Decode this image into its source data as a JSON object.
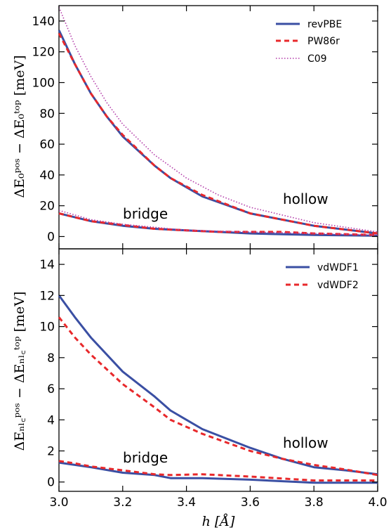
{
  "chart_data": [
    {
      "type": "line",
      "ylabel": "ΔE₀ᵖᵒˢ − ΔE₀ᵗᵒᵖ [meV]",
      "xlim": [
        3.0,
        4.0
      ],
      "ylim": [
        -8,
        150
      ],
      "yticks": [
        "0",
        "20",
        "40",
        "60",
        "80",
        "100",
        "120",
        "140"
      ],
      "legend_position": "top-right",
      "annotations": [
        "hollow",
        "bridge"
      ],
      "series": [
        {
          "name": "revPBE",
          "color": "#3a4fa3",
          "style": "solid",
          "site": "hollow",
          "x": [
            3.0,
            3.05,
            3.1,
            3.15,
            3.2,
            3.3,
            3.35,
            3.45,
            3.6,
            3.8,
            4.0
          ],
          "y": [
            134,
            112,
            93,
            78,
            65,
            46,
            38,
            26,
            15,
            7,
            2
          ]
        },
        {
          "name": "PW86r",
          "color": "#e8282b",
          "style": "dashed",
          "site": "hollow",
          "x": [
            3.0,
            3.05,
            3.1,
            3.15,
            3.2,
            3.3,
            3.35,
            3.45,
            3.6,
            3.8,
            4.0
          ],
          "y": [
            132,
            112,
            93,
            78,
            66,
            46,
            38,
            27,
            15,
            7,
            2
          ]
        },
        {
          "name": "C09",
          "color": "#b23aa8",
          "style": "dotted",
          "site": "hollow",
          "x": [
            3.0,
            3.05,
            3.1,
            3.15,
            3.2,
            3.3,
            3.4,
            3.5,
            3.6,
            3.8,
            4.0
          ],
          "y": [
            149,
            124,
            104,
            87,
            73,
            53,
            38,
            27,
            19,
            9,
            3
          ]
        },
        {
          "name": "revPBE",
          "color": "#3a4fa3",
          "style": "solid",
          "site": "bridge",
          "x": [
            3.0,
            3.1,
            3.2,
            3.3,
            3.4,
            3.5,
            3.6,
            3.8,
            4.0
          ],
          "y": [
            15,
            10,
            7,
            5,
            4,
            3,
            2,
            1,
            0.5
          ]
        },
        {
          "name": "PW86r",
          "color": "#e8282b",
          "style": "dashed",
          "site": "bridge",
          "x": [
            3.0,
            3.1,
            3.2,
            3.3,
            3.4,
            3.5,
            3.6,
            3.7,
            3.8,
            4.0
          ],
          "y": [
            15,
            10,
            7.5,
            5,
            4,
            3,
            3,
            3,
            2,
            1
          ]
        },
        {
          "name": "C09",
          "color": "#b23aa8",
          "style": "dotted",
          "site": "bridge",
          "x": [
            3.0,
            3.1,
            3.2,
            3.3,
            3.4,
            3.5,
            3.6,
            3.8,
            4.0
          ],
          "y": [
            17,
            11,
            8,
            6,
            4,
            3.5,
            3,
            2,
            1
          ]
        }
      ]
    },
    {
      "type": "line",
      "ylabel": "ΔEₙₗ꜀ᵖᵒˢ − ΔEₙₗ꜀ᵗᵒᵖ [meV]",
      "xlabel": "h [Å]",
      "xlim": [
        3.0,
        4.0
      ],
      "ylim": [
        -0.6,
        15
      ],
      "xticks": [
        "3.0",
        "3.2",
        "3.4",
        "3.6",
        "3.8",
        "4.0"
      ],
      "yticks": [
        "0",
        "2",
        "4",
        "6",
        "8",
        "10",
        "12",
        "14"
      ],
      "legend_position": "top-right",
      "annotations": [
        "hollow",
        "bridge"
      ],
      "series": [
        {
          "name": "vdWDF1",
          "color": "#3a4fa3",
          "style": "solid",
          "site": "hollow",
          "x": [
            3.0,
            3.05,
            3.1,
            3.2,
            3.3,
            3.35,
            3.45,
            3.6,
            3.7,
            3.8,
            3.9,
            4.0
          ],
          "y": [
            12.0,
            10.6,
            9.3,
            7.1,
            5.5,
            4.6,
            3.4,
            2.2,
            1.5,
            0.95,
            0.75,
            0.5
          ]
        },
        {
          "name": "vdWDF2",
          "color": "#e8282b",
          "style": "dashed",
          "site": "hollow",
          "x": [
            3.0,
            3.05,
            3.1,
            3.2,
            3.3,
            3.35,
            3.45,
            3.6,
            3.7,
            3.8,
            3.9,
            4.0
          ],
          "y": [
            10.6,
            9.3,
            8.2,
            6.3,
            4.8,
            4.0,
            3.1,
            2.0,
            1.5,
            1.1,
            0.8,
            0.45
          ]
        },
        {
          "name": "vdWDF1",
          "color": "#3a4fa3",
          "style": "solid",
          "site": "bridge",
          "x": [
            3.0,
            3.05,
            3.1,
            3.2,
            3.3,
            3.35,
            3.45,
            3.6,
            3.8,
            4.0
          ],
          "y": [
            1.25,
            1.1,
            0.95,
            0.6,
            0.45,
            0.25,
            0.25,
            0.15,
            -0.05,
            -0.05
          ]
        },
        {
          "name": "vdWDF2",
          "color": "#e8282b",
          "style": "dashed",
          "site": "bridge",
          "x": [
            3.0,
            3.05,
            3.1,
            3.2,
            3.3,
            3.35,
            3.45,
            3.6,
            3.8,
            4.0
          ],
          "y": [
            1.35,
            1.2,
            1.0,
            0.75,
            0.5,
            0.45,
            0.5,
            0.35,
            0.1,
            0.1
          ]
        }
      ]
    }
  ]
}
